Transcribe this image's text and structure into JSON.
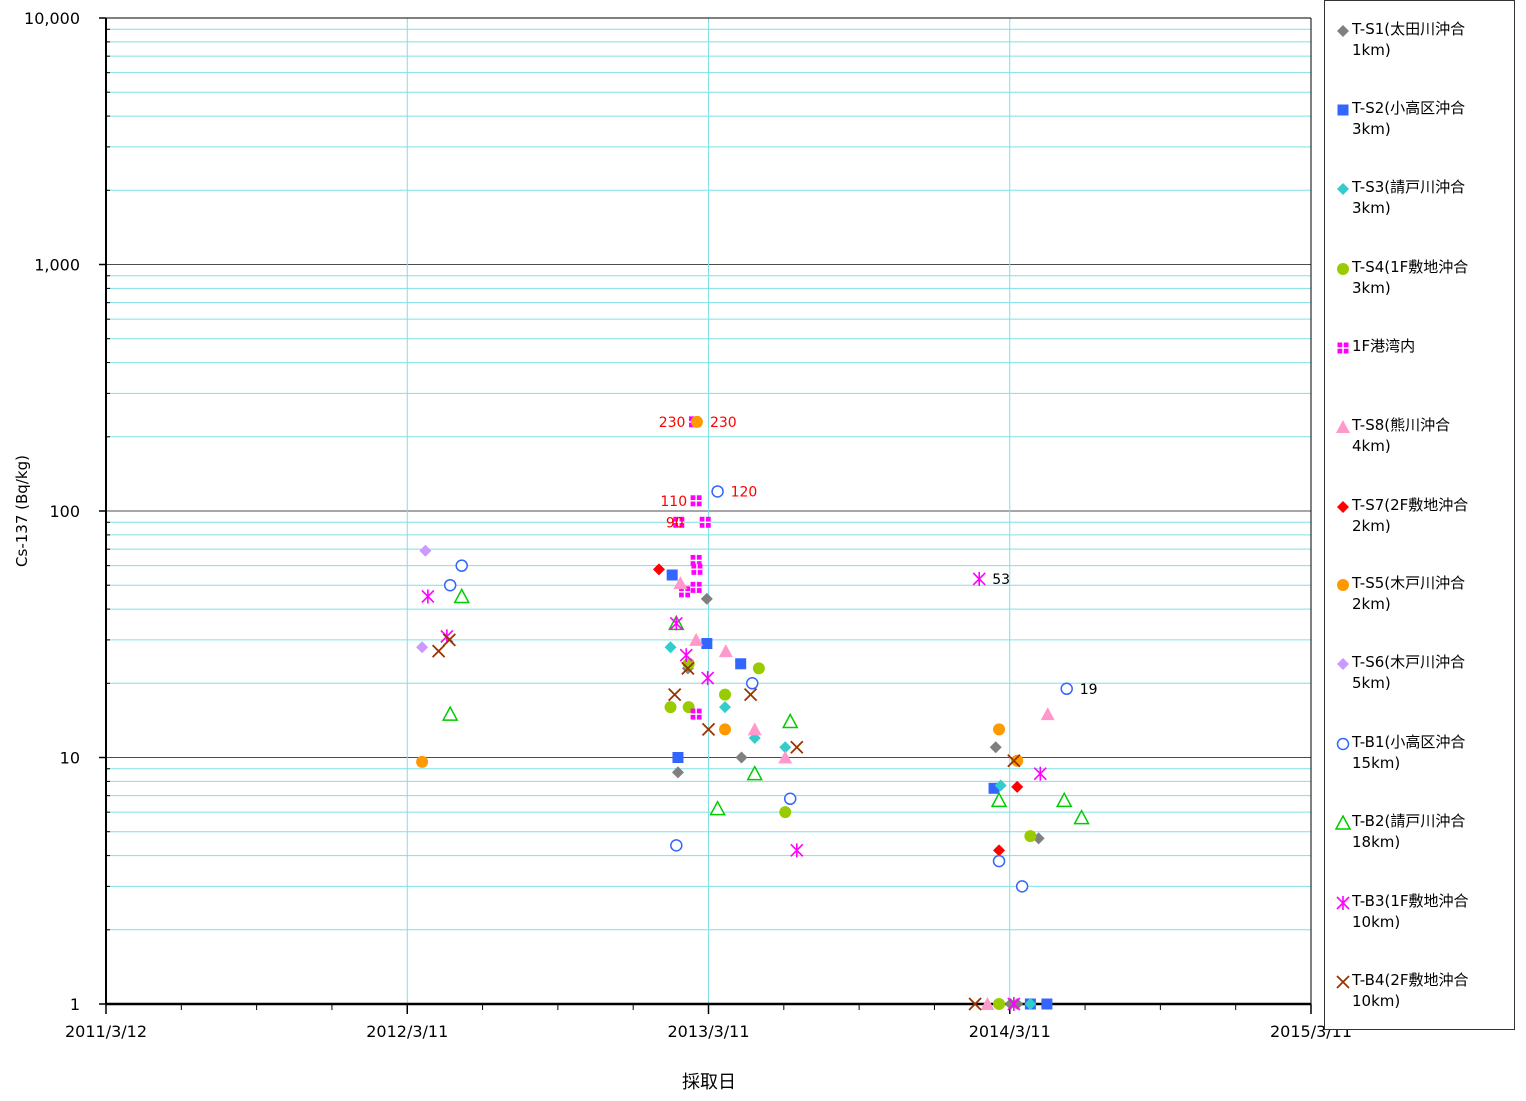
{
  "chart_data": {
    "type": "scatter",
    "title": "",
    "xlabel": "採取日",
    "ylabel": "Cs-137 (Bq/kg)",
    "x_axis": {
      "type": "date",
      "range": [
        "2011-03-12",
        "2015-03-11"
      ],
      "tick_labels": [
        "2011/3/12",
        "2012/3/11",
        "2013/3/11",
        "2014/3/11",
        "2015/3/11"
      ],
      "tick_dates": [
        "2011-03-12",
        "2012-03-11",
        "2013-03-11",
        "2014-03-11",
        "2015-03-11"
      ]
    },
    "y_axis": {
      "scale": "log",
      "range": [
        1,
        10000
      ],
      "tick_labels": [
        "1",
        "10",
        "100",
        "1,000",
        "10,000"
      ],
      "tick_values": [
        1,
        10,
        100,
        1000,
        10000
      ]
    },
    "grid": true,
    "legend_position": "right",
    "series": [
      {
        "name": "T-S1(太田川沖合\n1km)",
        "marker": "diamond",
        "color": "#808080",
        "filled": true,
        "points": [
          [
            "2013-02-02",
            8.7
          ],
          [
            "2013-02-14",
            23
          ],
          [
            "2013-03-09",
            44
          ],
          [
            "2013-04-20",
            10
          ],
          [
            "2014-02-22",
            11
          ],
          [
            "2014-04-15",
            4.7
          ],
          [
            "2014-03-12",
            1
          ],
          [
            "2014-03-20",
            1
          ]
        ]
      },
      {
        "name": "T-S2(小高区沖合\n3km)",
        "marker": "square",
        "color": "#3366ff",
        "filled": true,
        "points": [
          [
            "2013-01-26",
            55
          ],
          [
            "2013-02-02",
            10
          ],
          [
            "2013-03-09",
            29
          ],
          [
            "2013-04-19",
            24
          ],
          [
            "2014-02-20",
            7.5
          ],
          [
            "2014-04-05",
            1
          ],
          [
            "2014-04-25",
            1
          ]
        ]
      },
      {
        "name": "T-S3(請戸川沖合\n3km)",
        "marker": "diamond",
        "color": "#33cccc",
        "filled": true,
        "points": [
          [
            "2013-01-24",
            28
          ],
          [
            "2013-03-31",
            16
          ],
          [
            "2013-05-06",
            12
          ],
          [
            "2013-06-12",
            11
          ],
          [
            "2014-02-28",
            7.7
          ],
          [
            "2014-04-05",
            1
          ]
        ]
      },
      {
        "name": "T-S4(1F敷地沖合\n3km)",
        "marker": "circle",
        "color": "#99cc00",
        "filled": true,
        "points": [
          [
            "2013-01-24",
            16
          ],
          [
            "2013-02-15",
            16
          ],
          [
            "2013-02-15",
            24
          ],
          [
            "2013-03-31",
            18
          ],
          [
            "2013-05-11",
            23
          ],
          [
            "2013-06-12",
            6
          ],
          [
            "2014-04-05",
            4.8
          ],
          [
            "2014-02-26",
            1
          ]
        ]
      },
      {
        "name": "1F港湾内",
        "marker": "square-cross",
        "color": "#ff00ff",
        "filled": true,
        "points": [
          [
            "2013-02-22",
            230
          ],
          [
            "2013-02-24",
            110
          ],
          [
            "2013-02-03",
            90
          ],
          [
            "2013-03-07",
            90
          ],
          [
            "2013-02-24",
            63
          ],
          [
            "2013-02-25",
            58
          ],
          [
            "2013-02-24",
            49
          ],
          [
            "2013-02-10",
            47
          ],
          [
            "2013-02-24",
            15
          ]
        ]
      },
      {
        "name": "T-S8(熊川沖合\n4km)",
        "marker": "triangle",
        "color": "#ff99cc",
        "filled": true,
        "points": [
          [
            "2013-02-05",
            51
          ],
          [
            "2013-02-24",
            30
          ],
          [
            "2013-04-01",
            27
          ],
          [
            "2013-05-06",
            13
          ],
          [
            "2013-06-12",
            10
          ],
          [
            "2014-04-26",
            15
          ],
          [
            "2014-02-12",
            1
          ]
        ]
      },
      {
        "name": "T-S7(2F敷地沖合\n2km)",
        "marker": "diamond",
        "color": "#ff0000",
        "filled": true,
        "points": [
          [
            "2013-01-10",
            58
          ],
          [
            "2014-02-26",
            4.2
          ],
          [
            "2014-03-20",
            7.6
          ]
        ]
      },
      {
        "name": "T-S5(木戸川沖合\n2km)",
        "marker": "circle",
        "color": "#ff9900",
        "filled": true,
        "points": [
          [
            "2012-03-29",
            9.6
          ],
          [
            "2013-02-25",
            230
          ],
          [
            "2013-03-31",
            13
          ],
          [
            "2014-02-26",
            13
          ],
          [
            "2014-03-20",
            9.7
          ]
        ]
      },
      {
        "name": "T-S6(木戸川沖合\n5km)",
        "marker": "diamond",
        "color": "#cc99ff",
        "filled": true,
        "points": [
          [
            "2012-04-02",
            69
          ],
          [
            "2012-03-29",
            28
          ]
        ]
      },
      {
        "name": "T-B1(小高区沖合\n15km)",
        "marker": "circle",
        "color": "#3366ff",
        "filled": false,
        "points": [
          [
            "2012-05-16",
            60
          ],
          [
            "2012-05-02",
            50
          ],
          [
            "2013-03-22",
            120
          ],
          [
            "2013-05-03",
            20
          ],
          [
            "2013-06-18",
            6.8
          ],
          [
            "2013-01-31",
            4.4
          ],
          [
            "2014-02-26",
            3.8
          ],
          [
            "2014-03-26",
            3
          ],
          [
            "2014-05-19",
            19
          ]
        ]
      },
      {
        "name": "T-B2(請戸川沖合\n18km)",
        "marker": "triangle",
        "color": "#00cc00",
        "filled": false,
        "points": [
          [
            "2012-05-16",
            45
          ],
          [
            "2012-05-02",
            15
          ],
          [
            "2013-01-31",
            35
          ],
          [
            "2013-03-22",
            6.2
          ],
          [
            "2013-05-06",
            8.6
          ],
          [
            "2013-06-18",
            14
          ],
          [
            "2014-02-26",
            6.7
          ],
          [
            "2014-05-16",
            6.7
          ],
          [
            "2014-06-06",
            5.7
          ]
        ]
      },
      {
        "name": "T-B3(1F敷地沖合\n10km)",
        "marker": "asterisk",
        "color": "#ff00ff",
        "filled": false,
        "points": [
          [
            "2012-04-05",
            45
          ],
          [
            "2012-04-28",
            31
          ],
          [
            "2013-01-31",
            35
          ],
          [
            "2013-02-12",
            26
          ],
          [
            "2013-03-10",
            21
          ],
          [
            "2013-06-26",
            4.2
          ],
          [
            "2014-02-02",
            53
          ],
          [
            "2014-04-17",
            8.6
          ],
          [
            "2014-03-16",
            1
          ]
        ]
      },
      {
        "name": "T-B4(2F敷地沖合\n10km)",
        "marker": "x",
        "color": "#993300",
        "filled": false,
        "points": [
          [
            "2012-04-18",
            27
          ],
          [
            "2012-05-01",
            30
          ],
          [
            "2013-01-29",
            18
          ],
          [
            "2013-02-14",
            23
          ],
          [
            "2013-03-11",
            13
          ],
          [
            "2013-05-01",
            18
          ],
          [
            "2013-06-26",
            11
          ],
          [
            "2014-03-16",
            9.7
          ],
          [
            "2014-01-28",
            1
          ]
        ]
      }
    ],
    "annotations": [
      {
        "text": "230",
        "x": "2013-02-22",
        "y": 230,
        "side": "left",
        "color": "#ff0000"
      },
      {
        "text": "230",
        "x": "2013-02-25",
        "y": 230,
        "side": "right",
        "color": "#ff0000"
      },
      {
        "text": "110",
        "x": "2013-02-24",
        "y": 110,
        "side": "left",
        "color": "#ff0000"
      },
      {
        "text": "120",
        "x": "2013-03-22",
        "y": 120,
        "side": "right",
        "color": "#ff0000"
      },
      {
        "text": "90",
        "x": "2013-02-03",
        "y": 90,
        "side": "left-near",
        "color": "#ff0000"
      },
      {
        "text": "53",
        "x": "2014-02-02",
        "y": 53,
        "side": "right",
        "color": "#000000"
      },
      {
        "text": "19",
        "x": "2014-05-19",
        "y": 19,
        "side": "right",
        "color": "#000000"
      }
    ]
  }
}
